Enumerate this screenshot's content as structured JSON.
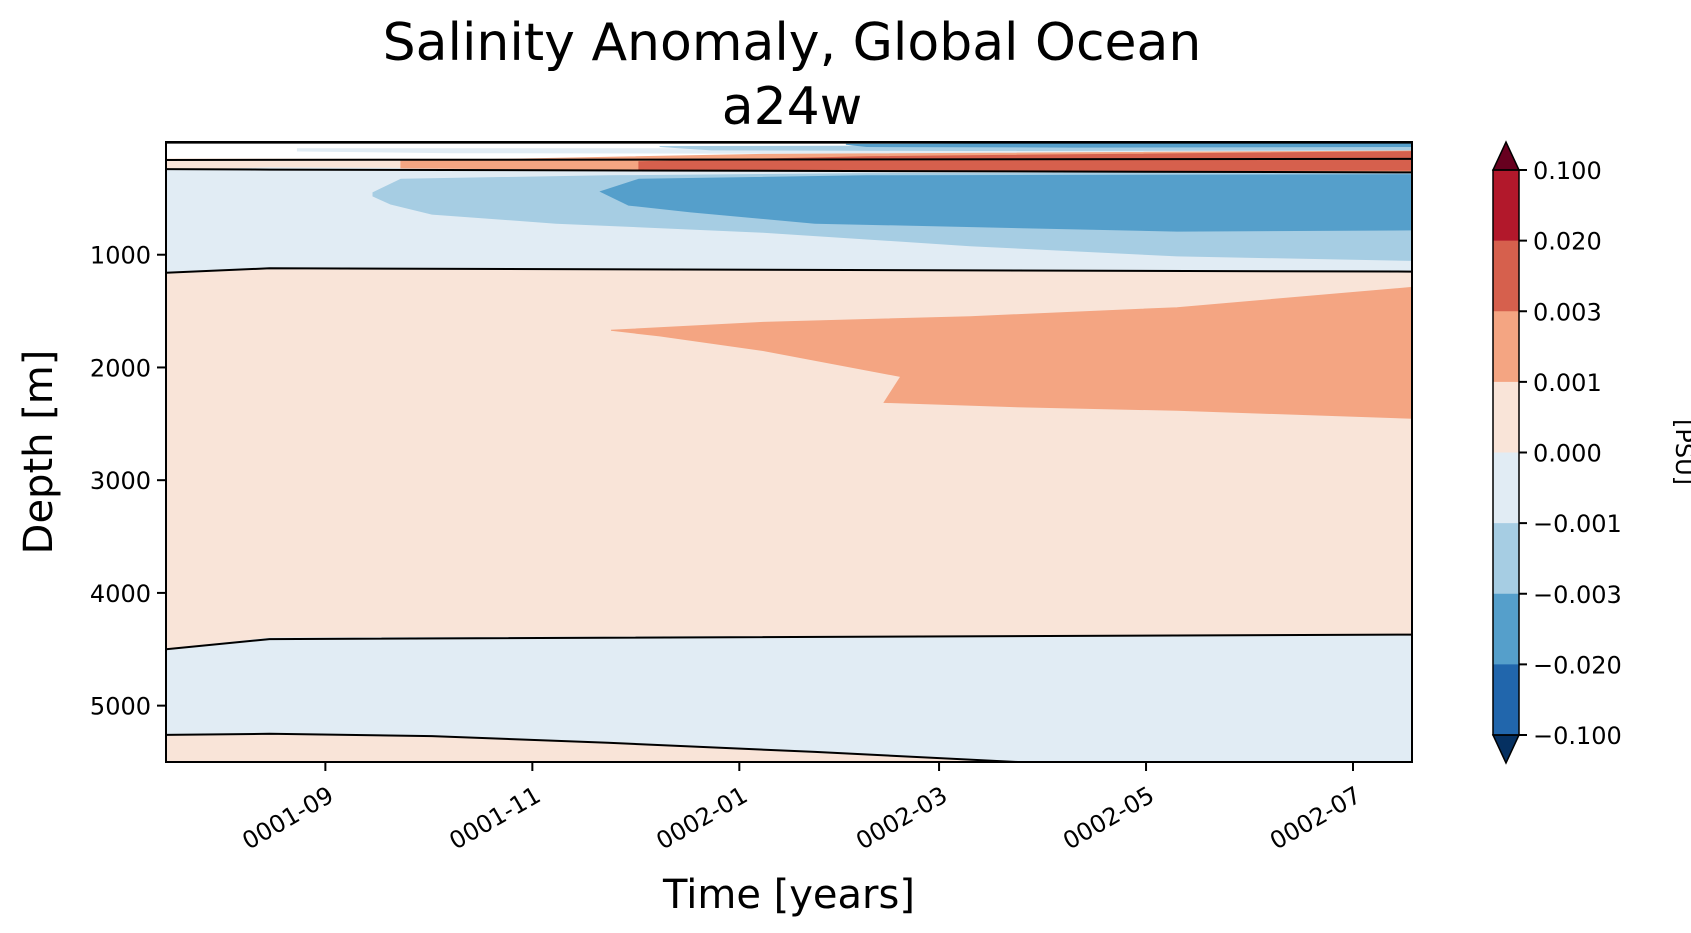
{
  "chart_data": {
    "type": "contourf",
    "title": "Salinity Anomaly, Global Ocean",
    "subtitle": "a24w",
    "xlabel": "Time [years]",
    "ylabel": "Depth [m]",
    "xlim": [
      -0.77,
      11.27
    ],
    "ylim": [
      5500,
      0
    ],
    "xticks": [
      {
        "value": 0.77,
        "label": "0001-09"
      },
      {
        "value": 2.77,
        "label": "0001-11"
      },
      {
        "value": 4.77,
        "label": "0002-01"
      },
      {
        "value": 6.7,
        "label": "0002-03"
      },
      {
        "value": 8.7,
        "label": "0002-05"
      },
      {
        "value": 10.7,
        "label": "0002-07"
      }
    ],
    "yticks": [
      {
        "value": 1000,
        "label": "1000"
      },
      {
        "value": 2000,
        "label": "2000"
      },
      {
        "value": 3000,
        "label": "3000"
      },
      {
        "value": 4000,
        "label": "4000"
      },
      {
        "value": 5000,
        "label": "5000"
      }
    ],
    "colorbar": {
      "label": "[PSU]",
      "levels": [
        "0.100",
        "0.020",
        "0.003",
        "0.001",
        "0.000",
        "−0.001",
        "−0.003",
        "−0.020",
        "−0.100"
      ],
      "bands": [
        "#b2182b",
        "#d6604d",
        "#f4a582",
        "#f9e4d8",
        "#e1ecf4",
        "#a6cde3",
        "#559fcb",
        "#2166ac"
      ],
      "extend_max_color": "#67001f",
      "extend_min_color": "#053061"
    },
    "regions": [
      {
        "name": "deep-positive",
        "color": "#f9e4d8",
        "poly": [
          [
            -0.77,
            150
          ],
          [
            0.23,
            150
          ],
          [
            11.27,
            160
          ],
          [
            11.27,
            5500
          ],
          [
            -0.77,
            5500
          ]
        ]
      },
      {
        "name": "lower-negative-band",
        "color": "#e1ecf4",
        "poly": [
          [
            -0.77,
            4500
          ],
          [
            0.23,
            4400
          ],
          [
            11.27,
            4370
          ],
          [
            11.27,
            5500
          ],
          [
            7.46,
            5500
          ],
          [
            5.5,
            5410
          ],
          [
            3.5,
            5330
          ],
          [
            1.8,
            5270
          ],
          [
            0.23,
            5250
          ],
          [
            -0.77,
            5260
          ]
        ]
      },
      {
        "name": "upper-negative-band",
        "color": "#e1ecf4",
        "poly": [
          [
            -0.77,
            250
          ],
          [
            0.23,
            230
          ],
          [
            11.27,
            260
          ],
          [
            11.27,
            1150
          ],
          [
            0.23,
            1120
          ],
          [
            -0.77,
            1160
          ]
        ]
      },
      {
        "name": "intermediate-fresh",
        "color": "#a6cde3",
        "poly": [
          [
            1.23,
            450
          ],
          [
            1.5,
            330
          ],
          [
            3.5,
            300
          ],
          [
            6.0,
            280
          ],
          [
            11.27,
            270
          ],
          [
            11.27,
            1050
          ],
          [
            9.0,
            1010
          ],
          [
            7.0,
            920
          ],
          [
            5.0,
            800
          ],
          [
            3.0,
            720
          ],
          [
            1.8,
            640
          ],
          [
            1.4,
            550
          ],
          [
            1.23,
            480
          ]
        ]
      },
      {
        "name": "intermediate-fresh-strong",
        "color": "#559fcb",
        "poly": [
          [
            3.43,
            440
          ],
          [
            3.8,
            330
          ],
          [
            6.0,
            300
          ],
          [
            11.27,
            290
          ],
          [
            11.27,
            780
          ],
          [
            9.0,
            790
          ],
          [
            7.5,
            760
          ],
          [
            5.5,
            720
          ],
          [
            4.3,
            620
          ],
          [
            3.7,
            560
          ]
        ]
      },
      {
        "name": "mid-depth-salty",
        "color": "#f4a582",
        "poly": [
          [
            3.53,
            1670
          ],
          [
            5.0,
            1600
          ],
          [
            7.0,
            1550
          ],
          [
            9.0,
            1470
          ],
          [
            11.27,
            1290
          ],
          [
            11.27,
            2450
          ],
          [
            9.0,
            2380
          ],
          [
            7.5,
            2350
          ],
          [
            6.17,
            2310
          ],
          [
            6.33,
            2080
          ],
          [
            5.0,
            1850
          ],
          [
            4.0,
            1720
          ]
        ]
      },
      {
        "name": "surface-fresh-thin",
        "color": "#e1ecf4",
        "poly": [
          [
            0.5,
            60
          ],
          [
            4.0,
            60
          ],
          [
            11.27,
            50
          ],
          [
            11.27,
            95
          ],
          [
            5.0,
            100
          ],
          [
            2.0,
            95
          ],
          [
            0.5,
            80
          ]
        ]
      },
      {
        "name": "surface-fresh",
        "color": "#a6cde3",
        "poly": [
          [
            4.0,
            40
          ],
          [
            11.27,
            30
          ],
          [
            11.27,
            70
          ],
          [
            7.0,
            75
          ],
          [
            4.5,
            70
          ]
        ]
      },
      {
        "name": "surface-fresh-strong",
        "color": "#559fcb",
        "poly": [
          [
            5.8,
            20
          ],
          [
            11.27,
            10
          ],
          [
            11.27,
            40
          ],
          [
            8.0,
            45
          ],
          [
            6.0,
            40
          ]
        ]
      },
      {
        "name": "near-surface-salty",
        "color": "#f4a582",
        "poly": [
          [
            1.5,
            170
          ],
          [
            5.0,
            110
          ],
          [
            11.27,
            80
          ],
          [
            11.27,
            260
          ],
          [
            5.0,
            255
          ],
          [
            1.5,
            230
          ]
        ]
      },
      {
        "name": "near-surface-salty-strong",
        "color": "#d6604d",
        "poly": [
          [
            3.8,
            175
          ],
          [
            6.0,
            130
          ],
          [
            11.27,
            85
          ],
          [
            11.27,
            250
          ],
          [
            6.0,
            255
          ],
          [
            3.8,
            240
          ]
        ]
      }
    ],
    "contour_lines": [
      {
        "name": "contour-line-surface",
        "points": [
          [
            -0.77,
            5
          ],
          [
            11.27,
            5
          ]
        ]
      },
      {
        "name": "contour-line-upper-1",
        "points": [
          [
            -0.77,
            160
          ],
          [
            11.27,
            150
          ]
        ]
      },
      {
        "name": "contour-line-upper-2",
        "points": [
          [
            -0.77,
            240
          ],
          [
            0.23,
            245
          ],
          [
            11.27,
            270
          ]
        ]
      },
      {
        "name": "contour-line-mid-1",
        "points": [
          [
            -0.77,
            1160
          ],
          [
            0.23,
            1120
          ],
          [
            11.27,
            1150
          ]
        ]
      },
      {
        "name": "contour-line-deep-1",
        "points": [
          [
            -0.77,
            4500
          ],
          [
            0.23,
            4410
          ],
          [
            11.27,
            4370
          ]
        ]
      },
      {
        "name": "contour-line-deep-2",
        "points": [
          [
            -0.77,
            5260
          ],
          [
            0.23,
            5250
          ],
          [
            1.8,
            5270
          ],
          [
            3.5,
            5330
          ],
          [
            5.5,
            5410
          ],
          [
            7.46,
            5500
          ]
        ]
      }
    ]
  }
}
